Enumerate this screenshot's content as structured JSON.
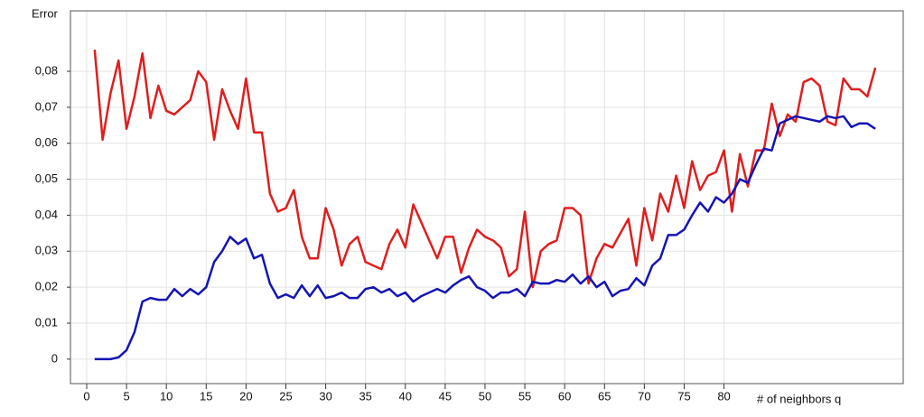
{
  "chart_data": {
    "type": "line",
    "y_label": "Error",
    "x_label": "# of neighbors q",
    "x": [
      1,
      2,
      3,
      4,
      5,
      6,
      7,
      8,
      9,
      10,
      11,
      12,
      13,
      14,
      15,
      16,
      17,
      18,
      19,
      20,
      21,
      22,
      23,
      24,
      25,
      26,
      27,
      28,
      29,
      30,
      31,
      32,
      33,
      34,
      35,
      36,
      37,
      38,
      39,
      40,
      41,
      42,
      43,
      44,
      45,
      46,
      47,
      48,
      49,
      50,
      51,
      52,
      53,
      54,
      55,
      56,
      57,
      58,
      59,
      60,
      61,
      62,
      63,
      64,
      65,
      66,
      67,
      68,
      69,
      70,
      71,
      72,
      73,
      74,
      75,
      76,
      77,
      78,
      79,
      80,
      81,
      82,
      83,
      84,
      85,
      86,
      87,
      88,
      89,
      90,
      91,
      92,
      93,
      94,
      95,
      96,
      97,
      98,
      99
    ],
    "series": [
      {
        "color": "#e01e1e",
        "values": [
          0.086,
          0.061,
          0.074,
          0.083,
          0.064,
          0.073,
          0.085,
          0.067,
          0.076,
          0.069,
          0.068,
          0.07,
          0.072,
          0.08,
          0.077,
          0.061,
          0.075,
          0.069,
          0.064,
          0.078,
          0.063,
          0.063,
          0.046,
          0.041,
          0.042,
          0.047,
          0.034,
          0.028,
          0.028,
          0.042,
          0.036,
          0.026,
          0.032,
          0.034,
          0.027,
          0.026,
          0.025,
          0.032,
          0.036,
          0.031,
          0.043,
          0.038,
          0.033,
          0.028,
          0.034,
          0.034,
          0.024,
          0.031,
          0.036,
          0.034,
          0.033,
          0.031,
          0.023,
          0.025,
          0.041,
          0.02,
          0.03,
          0.032,
          0.033,
          0.042,
          0.042,
          0.04,
          0.021,
          0.028,
          0.032,
          0.031,
          0.035,
          0.039,
          0.026,
          0.042,
          0.033,
          0.046,
          0.041,
          0.051,
          0.042,
          0.055,
          0.047,
          0.051,
          0.052,
          0.058,
          0.041,
          0.057,
          0.048,
          0.058,
          0.058,
          0.071,
          0.062,
          0.068,
          0.066,
          0.077,
          0.078,
          0.076,
          0.066,
          0.065,
          0.078,
          0.075,
          0.075,
          0.073,
          0.081
        ]
      },
      {
        "color": "#1414b4",
        "values": [
          0,
          0,
          0,
          0.0005,
          0.0025,
          0.0075,
          0.016,
          0.017,
          0.0165,
          0.0165,
          0.0195,
          0.0175,
          0.0195,
          0.018,
          0.02,
          0.027,
          0.03,
          0.034,
          0.032,
          0.0335,
          0.028,
          0.029,
          0.021,
          0.017,
          0.018,
          0.017,
          0.0205,
          0.0175,
          0.0205,
          0.017,
          0.0175,
          0.0185,
          0.017,
          0.017,
          0.0195,
          0.02,
          0.0185,
          0.0195,
          0.0175,
          0.0185,
          0.016,
          0.0175,
          0.0185,
          0.0195,
          0.0185,
          0.0205,
          0.022,
          0.023,
          0.02,
          0.019,
          0.017,
          0.0185,
          0.0185,
          0.0195,
          0.0175,
          0.0215,
          0.021,
          0.021,
          0.022,
          0.0215,
          0.0235,
          0.021,
          0.023,
          0.02,
          0.0215,
          0.0175,
          0.019,
          0.0195,
          0.0225,
          0.0205,
          0.026,
          0.028,
          0.0345,
          0.0345,
          0.036,
          0.04,
          0.0435,
          0.041,
          0.045,
          0.0435,
          0.046,
          0.05,
          0.049,
          0.054,
          0.0585,
          0.058,
          0.0655,
          0.0665,
          0.0675,
          0.067,
          0.0665,
          0.066,
          0.0675,
          0.067,
          0.0675,
          0.0645,
          0.0655,
          0.0655,
          0.064
        ]
      }
    ],
    "xlim": [
      -2.04,
      102.5
    ],
    "xticks": [
      0,
      5,
      10,
      15,
      20,
      25,
      30,
      35,
      40,
      45,
      50,
      55,
      60,
      65,
      70,
      75,
      80
    ],
    "ylim": [
      -0.0068,
      0.0968
    ],
    "yticks": [
      0,
      {
        "value": 0.01,
        "label": "0,01"
      },
      {
        "value": 0.02,
        "label": "0,02"
      },
      {
        "value": 0.03,
        "label": "0,03"
      },
      {
        "value": 0.04,
        "label": "0,04"
      },
      {
        "value": 0.05,
        "label": "0,05"
      },
      {
        "value": 0.06,
        "label": "0,06"
      },
      {
        "value": 0.07,
        "label": "0,07"
      },
      {
        "value": 0.08,
        "label": "0,08"
      }
    ],
    "grid": true
  }
}
